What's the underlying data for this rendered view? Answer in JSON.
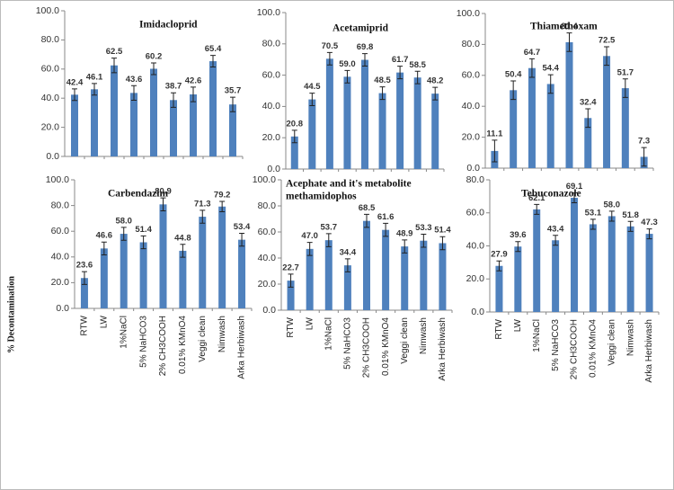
{
  "chart_data": [
    {
      "type": "bar",
      "title": "Imidacloprid",
      "color": "#4f81bd",
      "values": [
        42.4,
        46.1,
        62.5,
        43.6,
        60.2,
        38.7,
        42.6,
        65.4,
        35.7
      ],
      "errors": [
        4,
        4,
        5,
        5,
        4,
        5,
        5,
        4,
        5
      ],
      "ylim": [
        0,
        100
      ],
      "yticks": [
        {
          "value": 0,
          "label": "0.0"
        },
        {
          "value": 20,
          "label": "20.0"
        },
        {
          "value": 40,
          "label": "40.0"
        },
        {
          "value": 60,
          "label": "60.0"
        },
        {
          "value": 80,
          "label": "80.0"
        },
        {
          "value": 100,
          "label": "100.0"
        }
      ]
    },
    {
      "type": "bar",
      "title": "Acetamiprid",
      "color": "#4f81bd",
      "values": [
        20.8,
        44.5,
        70.5,
        59.0,
        69.8,
        48.5,
        61.7,
        58.5,
        48.2
      ],
      "value_labels": [
        "20.8",
        "44.5",
        "70.5",
        "59.0",
        "69.8",
        "48.5",
        "61.7",
        "58.5",
        "48.2"
      ],
      "errors": [
        4,
        4,
        4,
        4,
        4,
        4,
        4,
        4,
        4
      ],
      "ylim": [
        0,
        100
      ],
      "yticks": [
        {
          "value": 0,
          "label": "0.0"
        },
        {
          "value": 20,
          "label": "20.0"
        },
        {
          "value": 40,
          "label": "40.0"
        },
        {
          "value": 60,
          "label": "60.0"
        },
        {
          "value": 80,
          "label": "80.0"
        },
        {
          "value": 100,
          "label": "100.0"
        }
      ]
    },
    {
      "type": "bar",
      "title": "Thiamethoxam",
      "color": "#4f81bd",
      "values": [
        11.1,
        50.4,
        64.7,
        54.4,
        81.4,
        32.4,
        72.5,
        51.7,
        7.3
      ],
      "errors": [
        7,
        6,
        6,
        6,
        6,
        6,
        6,
        6,
        6
      ],
      "ylim": [
        0,
        100
      ],
      "yticks": [
        {
          "value": 0,
          "label": "0.0"
        },
        {
          "value": 20,
          "label": "20.0"
        },
        {
          "value": 40,
          "label": "40.0"
        },
        {
          "value": 60,
          "label": "60.0"
        },
        {
          "value": 80,
          "label": "80.0"
        },
        {
          "value": 100,
          "label": "100.0"
        }
      ]
    },
    {
      "type": "bar",
      "title": "Carbendazim",
      "color": "#4f81bd",
      "ylabel": "% Decontamination",
      "categories": [
        "RTW",
        "LW",
        "1%NaCl",
        "5% NaHCO3",
        "2% CH3COOH",
        "0.01% KMnO4",
        "Veggi clean",
        "Nimwash",
        "Arka Herbiwash"
      ],
      "values": [
        23.6,
        46.6,
        58.0,
        51.4,
        80.9,
        44.8,
        71.3,
        79.2,
        53.4
      ],
      "value_labels": [
        "23.6",
        "46.6",
        "58.0",
        "51.4",
        "80.9",
        "44.8",
        "71.3",
        "79.2",
        "53.4"
      ],
      "errors": [
        5,
        5,
        5,
        5,
        5,
        5,
        5,
        4,
        5
      ],
      "ylim": [
        0,
        100
      ],
      "yticks": [
        {
          "value": 0,
          "label": "0.0"
        },
        {
          "value": 20,
          "label": "20.0"
        },
        {
          "value": 40,
          "label": "40.0"
        },
        {
          "value": 60,
          "label": "60.0"
        },
        {
          "value": 80,
          "label": "80.0"
        },
        {
          "value": 100,
          "label": "100.0"
        }
      ]
    },
    {
      "type": "bar",
      "title": [
        "Acephate and it's metabolite",
        "methamidophos"
      ],
      "color": "#4f81bd",
      "categories": [
        "RTW",
        "LW",
        "1%NaCl",
        "5% NaHCO3",
        "2% CH3COOH",
        "0.01% KMnO4",
        "Veggi clean",
        "Nimwash",
        "Arka Herbiwash"
      ],
      "values": [
        22.7,
        47.0,
        53.7,
        34.4,
        68.5,
        61.6,
        48.9,
        53.3,
        51.4
      ],
      "value_labels": [
        "22.7",
        "47.0",
        "53.7",
        "34.4",
        "68.5",
        "61.6",
        "48.9",
        "53.3",
        "51.4"
      ],
      "errors": [
        5,
        5,
        5,
        5,
        5,
        5,
        5,
        5,
        5
      ],
      "ylim": [
        0,
        100
      ],
      "yticks": [
        {
          "value": 0,
          "label": "0.0"
        },
        {
          "value": 20,
          "label": "20.0"
        },
        {
          "value": 40,
          "label": "40.0"
        },
        {
          "value": 60,
          "label": "60.0"
        },
        {
          "value": 80,
          "label": "80.0"
        },
        {
          "value": 100,
          "label": "100.0"
        }
      ]
    },
    {
      "type": "bar",
      "title": "Tebuconazole",
      "color": "#4f81bd",
      "categories": [
        "RTW",
        "LW",
        "1%NaCl",
        "5% NaHCO3",
        "2% CH3COOH",
        "0.01% KMnO4",
        "Veggi clean",
        "Nimwash",
        "Arka Herbiwash"
      ],
      "values": [
        27.9,
        39.6,
        62.1,
        43.4,
        69.1,
        53.1,
        58.0,
        51.8,
        47.3
      ],
      "value_labels": [
        "27.9",
        "39.6",
        "62.1",
        "43.4",
        "69.1",
        "53.1",
        "58.0",
        "51.8",
        "47.3"
      ],
      "errors": [
        3,
        3,
        3,
        3,
        3,
        3,
        3,
        3,
        3
      ],
      "ylim": [
        0,
        80
      ],
      "yticks": [
        {
          "value": 0,
          "label": "0.0"
        },
        {
          "value": 20,
          "label": "20.0"
        },
        {
          "value": 40,
          "label": "40.0"
        },
        {
          "value": 60,
          "label": "60.0"
        },
        {
          "value": 80,
          "label": "80.0"
        }
      ]
    }
  ]
}
